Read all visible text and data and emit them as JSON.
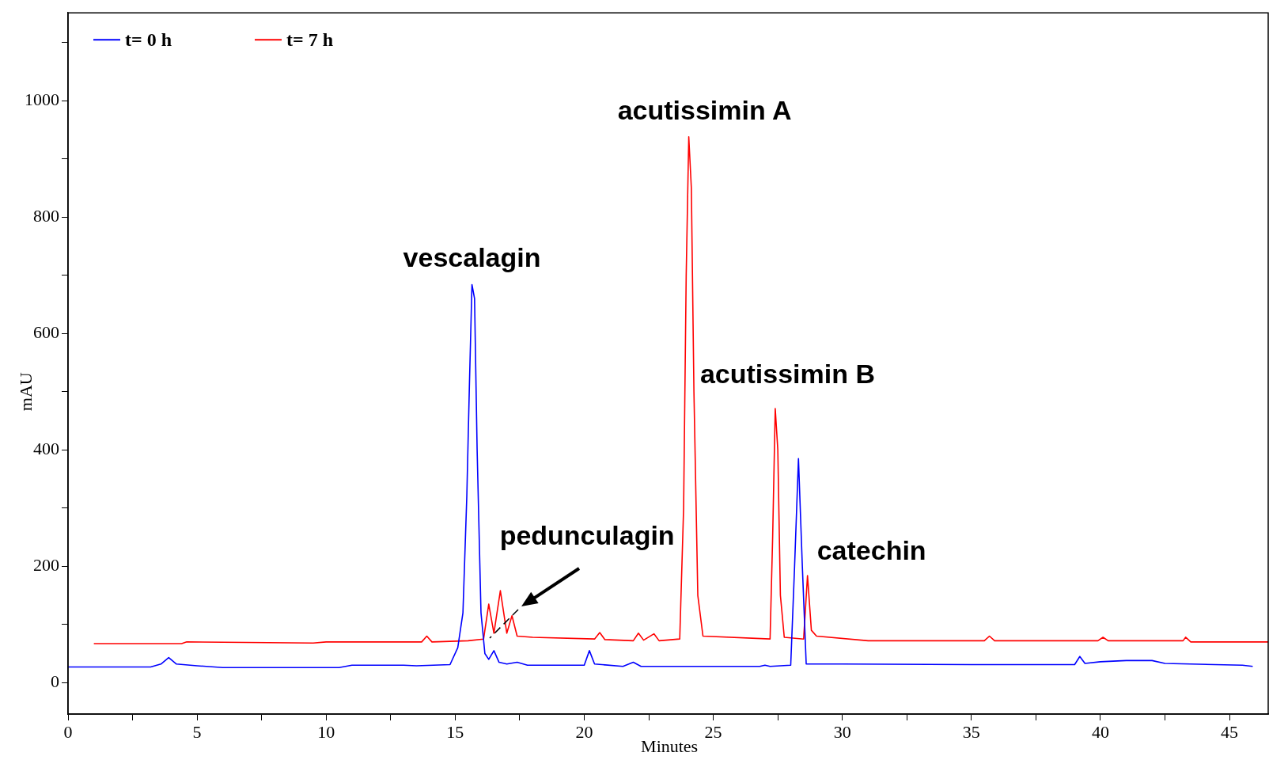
{
  "chart_data": {
    "type": "line",
    "xlabel": "Minutes",
    "ylabel": "mAU",
    "xlim": [
      0,
      46.5
    ],
    "ylim": [
      -54,
      1151
    ],
    "xticks": [
      0,
      {
        "value": 2.5,
        "label": null
      },
      5,
      {
        "value": 7.5,
        "label": null
      },
      10,
      {
        "value": 12.5,
        "label": null
      },
      15,
      {
        "value": 17.5,
        "label": null
      },
      20,
      {
        "value": 22.5,
        "label": null
      },
      25,
      {
        "value": 27.5,
        "label": null
      },
      30,
      {
        "value": 32.5,
        "label": null
      },
      35,
      {
        "value": 37.5,
        "label": null
      },
      40,
      {
        "value": 42.5,
        "label": null
      },
      45
    ],
    "yticks": [
      0,
      {
        "value": 100,
        "label": null
      },
      200,
      {
        "value": 300,
        "label": null
      },
      400,
      {
        "value": 500,
        "label": null
      },
      600,
      {
        "value": 700,
        "label": null
      },
      800,
      {
        "value": 900,
        "label": null
      },
      1000,
      {
        "value": 1100,
        "label": null
      }
    ],
    "grid": false,
    "legend": "top left",
    "marker": "none",
    "line_style": "solid",
    "series": [
      {
        "name": "t= 0 h",
        "color": "#0000ff",
        "x": [
          0,
          3.2,
          3.6,
          3.9,
          4.2,
          5,
          6,
          10.5,
          11,
          13,
          13.5,
          14.8,
          15.1,
          15.3,
          15.45,
          15.55,
          15.65,
          15.75,
          15.85,
          16.0,
          16.15,
          16.3,
          16.5,
          16.7,
          17.0,
          17.4,
          17.8,
          20.0,
          20.2,
          20.4,
          21.5,
          21.9,
          22.2,
          26.8,
          27.0,
          27.2,
          28.0,
          28.15,
          28.3,
          28.45,
          28.6,
          30.0,
          35,
          39,
          39.2,
          39.4,
          40,
          41,
          42,
          42.5,
          45.5,
          45.9
        ],
        "values": [
          27,
          27,
          32,
          43,
          32,
          29,
          26,
          26,
          30,
          30,
          29,
          31,
          60,
          120,
          320,
          510,
          684,
          660,
          400,
          120,
          50,
          40,
          55,
          35,
          32,
          35,
          30,
          30,
          55,
          32,
          28,
          35,
          28,
          28,
          30,
          28,
          30,
          200,
          385,
          200,
          32,
          32,
          31,
          31,
          45,
          33,
          36,
          38,
          38,
          33,
          30,
          28
        ]
      },
      {
        "name": "t= 7 h",
        "color": "#ff0000",
        "x": [
          1.0,
          4.4,
          4.6,
          9.5,
          10,
          13.7,
          13.9,
          14.1,
          15.5,
          16.1,
          16.3,
          16.5,
          16.75,
          17.0,
          17.2,
          17.4,
          18,
          20.4,
          20.6,
          20.8,
          21.9,
          22.1,
          22.3,
          22.7,
          22.9,
          23.7,
          23.85,
          23.95,
          24.05,
          24.15,
          24.25,
          24.4,
          24.6,
          27.2,
          27.3,
          27.4,
          27.5,
          27.6,
          27.75,
          28.5,
          28.65,
          28.8,
          29,
          31,
          35.5,
          35.7,
          35.9,
          39.9,
          40.1,
          40.3,
          43.2,
          43.3,
          43.5,
          46.5
        ],
        "values": [
          67,
          67,
          70,
          68,
          70,
          70,
          80,
          70,
          72,
          75,
          135,
          85,
          158,
          85,
          115,
          80,
          78,
          75,
          86,
          74,
          72,
          85,
          73,
          84,
          72,
          75,
          300,
          700,
          938,
          850,
          500,
          150,
          80,
          75,
          250,
          471,
          400,
          150,
          78,
          75,
          184,
          90,
          80,
          72,
          72,
          80,
          72,
          72,
          78,
          72,
          72,
          78,
          70,
          70
        ]
      }
    ],
    "annotations": [
      {
        "text": "vescalagin",
        "x": 15.65,
        "y": 684
      },
      {
        "text": "pedunculagin",
        "x": 17.2,
        "y": 115
      },
      {
        "text": "acutissimin A",
        "x": 24.05,
        "y": 938
      },
      {
        "text": "acutissimin B",
        "x": 27.4,
        "y": 471
      },
      {
        "text": "catechin",
        "x": 28.65,
        "y": 184
      }
    ]
  }
}
